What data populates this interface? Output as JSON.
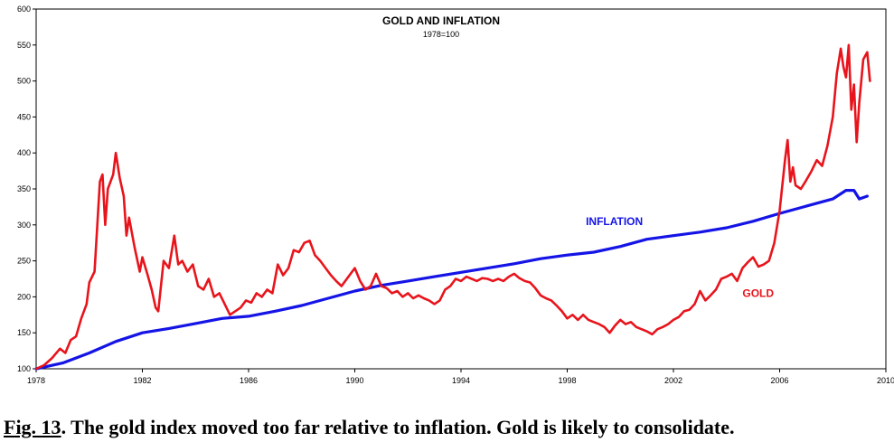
{
  "caption": {
    "figure_number": "Fig. 13",
    "text": ". The gold index moved too far relative to inflation. Gold is likely to consolidate."
  },
  "colors": {
    "gold": "#e8141c",
    "inflation": "#1414e6"
  },
  "chart_data": {
    "type": "line",
    "title": "GOLD AND INFLATION",
    "subtitle": "1978=100",
    "xlabel": "",
    "ylabel": "",
    "xlim": [
      1978,
      2010
    ],
    "ylim": [
      100,
      600
    ],
    "x_ticks": [
      1978,
      1982,
      1986,
      1990,
      1994,
      1998,
      2002,
      2006,
      2010
    ],
    "y_ticks": [
      100,
      150,
      200,
      250,
      300,
      350,
      400,
      450,
      500,
      550,
      600
    ],
    "series": [
      {
        "name": "INFLATION",
        "label": "INFLATION",
        "label_pos": [
          1998.7,
          300
        ],
        "points": [
          [
            1978,
            100
          ],
          [
            1979,
            108
          ],
          [
            1980,
            122
          ],
          [
            1981,
            138
          ],
          [
            1982,
            150
          ],
          [
            1983,
            156
          ],
          [
            1984,
            163
          ],
          [
            1985,
            170
          ],
          [
            1986,
            173
          ],
          [
            1987,
            180
          ],
          [
            1988,
            188
          ],
          [
            1989,
            198
          ],
          [
            1990,
            208
          ],
          [
            1991,
            216
          ],
          [
            1992,
            222
          ],
          [
            1993,
            228
          ],
          [
            1994,
            234
          ],
          [
            1995,
            240
          ],
          [
            1996,
            246
          ],
          [
            1997,
            253
          ],
          [
            1998,
            258
          ],
          [
            1999,
            262
          ],
          [
            2000,
            270
          ],
          [
            2001,
            280
          ],
          [
            2002,
            285
          ],
          [
            2003,
            290
          ],
          [
            2004,
            296
          ],
          [
            2005,
            305
          ],
          [
            2006,
            316
          ],
          [
            2007,
            326
          ],
          [
            2008,
            336
          ],
          [
            2008.5,
            348
          ],
          [
            2008.8,
            348
          ],
          [
            2009,
            336
          ],
          [
            2009.3,
            340
          ]
        ]
      },
      {
        "name": "GOLD",
        "label": "GOLD",
        "label_pos": [
          2004.6,
          200
        ],
        "points": [
          [
            1978,
            100
          ],
          [
            1978.3,
            105
          ],
          [
            1978.6,
            115
          ],
          [
            1978.9,
            128
          ],
          [
            1979.1,
            122
          ],
          [
            1979.3,
            140
          ],
          [
            1979.5,
            145
          ],
          [
            1979.7,
            170
          ],
          [
            1979.9,
            190
          ],
          [
            1980.0,
            220
          ],
          [
            1980.2,
            235
          ],
          [
            1980.4,
            360
          ],
          [
            1980.5,
            370
          ],
          [
            1980.6,
            300
          ],
          [
            1980.7,
            350
          ],
          [
            1980.9,
            370
          ],
          [
            1981.0,
            400
          ],
          [
            1981.15,
            365
          ],
          [
            1981.3,
            340
          ],
          [
            1981.4,
            285
          ],
          [
            1981.5,
            310
          ],
          [
            1981.7,
            270
          ],
          [
            1981.9,
            235
          ],
          [
            1982.0,
            255
          ],
          [
            1982.2,
            230
          ],
          [
            1982.35,
            210
          ],
          [
            1982.5,
            185
          ],
          [
            1982.6,
            180
          ],
          [
            1982.8,
            250
          ],
          [
            1983.0,
            240
          ],
          [
            1983.2,
            285
          ],
          [
            1983.35,
            245
          ],
          [
            1983.5,
            250
          ],
          [
            1983.7,
            235
          ],
          [
            1983.9,
            245
          ],
          [
            1984.1,
            215
          ],
          [
            1984.3,
            210
          ],
          [
            1984.5,
            225
          ],
          [
            1984.7,
            200
          ],
          [
            1984.9,
            205
          ],
          [
            1985.1,
            190
          ],
          [
            1985.3,
            175
          ],
          [
            1985.5,
            180
          ],
          [
            1985.7,
            185
          ],
          [
            1985.9,
            195
          ],
          [
            1986.1,
            192
          ],
          [
            1986.3,
            205
          ],
          [
            1986.5,
            200
          ],
          [
            1986.7,
            210
          ],
          [
            1986.9,
            205
          ],
          [
            1987.1,
            245
          ],
          [
            1987.3,
            230
          ],
          [
            1987.5,
            240
          ],
          [
            1987.7,
            265
          ],
          [
            1987.9,
            262
          ],
          [
            1988.1,
            275
          ],
          [
            1988.3,
            278
          ],
          [
            1988.5,
            258
          ],
          [
            1988.7,
            250
          ],
          [
            1988.9,
            240
          ],
          [
            1989.1,
            230
          ],
          [
            1989.3,
            222
          ],
          [
            1989.5,
            215
          ],
          [
            1989.7,
            225
          ],
          [
            1989.9,
            235
          ],
          [
            1990.0,
            240
          ],
          [
            1990.2,
            222
          ],
          [
            1990.4,
            210
          ],
          [
            1990.6,
            215
          ],
          [
            1990.8,
            232
          ],
          [
            1991.0,
            215
          ],
          [
            1991.2,
            212
          ],
          [
            1991.4,
            205
          ],
          [
            1991.6,
            208
          ],
          [
            1991.8,
            200
          ],
          [
            1992.0,
            205
          ],
          [
            1992.2,
            198
          ],
          [
            1992.4,
            202
          ],
          [
            1992.6,
            198
          ],
          [
            1992.8,
            195
          ],
          [
            1993.0,
            190
          ],
          [
            1993.2,
            195
          ],
          [
            1993.4,
            210
          ],
          [
            1993.6,
            215
          ],
          [
            1993.8,
            225
          ],
          [
            1994.0,
            222
          ],
          [
            1994.2,
            228
          ],
          [
            1994.4,
            225
          ],
          [
            1994.6,
            222
          ],
          [
            1994.8,
            226
          ],
          [
            1995.0,
            225
          ],
          [
            1995.2,
            222
          ],
          [
            1995.4,
            225
          ],
          [
            1995.6,
            222
          ],
          [
            1995.8,
            228
          ],
          [
            1996.0,
            232
          ],
          [
            1996.2,
            226
          ],
          [
            1996.4,
            222
          ],
          [
            1996.6,
            220
          ],
          [
            1996.8,
            212
          ],
          [
            1997.0,
            202
          ],
          [
            1997.2,
            198
          ],
          [
            1997.4,
            195
          ],
          [
            1997.6,
            188
          ],
          [
            1997.8,
            180
          ],
          [
            1998.0,
            170
          ],
          [
            1998.2,
            175
          ],
          [
            1998.4,
            168
          ],
          [
            1998.6,
            175
          ],
          [
            1998.8,
            168
          ],
          [
            1999.0,
            165
          ],
          [
            1999.2,
            162
          ],
          [
            1999.4,
            158
          ],
          [
            1999.6,
            150
          ],
          [
            1999.8,
            160
          ],
          [
            2000.0,
            168
          ],
          [
            2000.2,
            162
          ],
          [
            2000.4,
            165
          ],
          [
            2000.6,
            158
          ],
          [
            2000.8,
            155
          ],
          [
            2001.0,
            152
          ],
          [
            2001.2,
            148
          ],
          [
            2001.4,
            155
          ],
          [
            2001.6,
            158
          ],
          [
            2001.8,
            162
          ],
          [
            2002.0,
            168
          ],
          [
            2002.2,
            172
          ],
          [
            2002.4,
            180
          ],
          [
            2002.6,
            182
          ],
          [
            2002.8,
            190
          ],
          [
            2003.0,
            208
          ],
          [
            2003.2,
            195
          ],
          [
            2003.4,
            202
          ],
          [
            2003.6,
            210
          ],
          [
            2003.8,
            225
          ],
          [
            2004.0,
            228
          ],
          [
            2004.2,
            232
          ],
          [
            2004.4,
            222
          ],
          [
            2004.6,
            240
          ],
          [
            2004.8,
            248
          ],
          [
            2005.0,
            255
          ],
          [
            2005.2,
            242
          ],
          [
            2005.4,
            245
          ],
          [
            2005.6,
            250
          ],
          [
            2005.8,
            275
          ],
          [
            2006.0,
            320
          ],
          [
            2006.2,
            390
          ],
          [
            2006.3,
            418
          ],
          [
            2006.4,
            360
          ],
          [
            2006.5,
            380
          ],
          [
            2006.6,
            355
          ],
          [
            2006.8,
            350
          ],
          [
            2007.0,
            362
          ],
          [
            2007.2,
            375
          ],
          [
            2007.4,
            390
          ],
          [
            2007.6,
            382
          ],
          [
            2007.8,
            410
          ],
          [
            2008.0,
            450
          ],
          [
            2008.15,
            510
          ],
          [
            2008.3,
            545
          ],
          [
            2008.4,
            520
          ],
          [
            2008.5,
            505
          ],
          [
            2008.6,
            550
          ],
          [
            2008.7,
            460
          ],
          [
            2008.8,
            495
          ],
          [
            2008.9,
            415
          ],
          [
            2009.0,
            470
          ],
          [
            2009.15,
            530
          ],
          [
            2009.3,
            540
          ],
          [
            2009.4,
            500
          ]
        ]
      }
    ]
  }
}
